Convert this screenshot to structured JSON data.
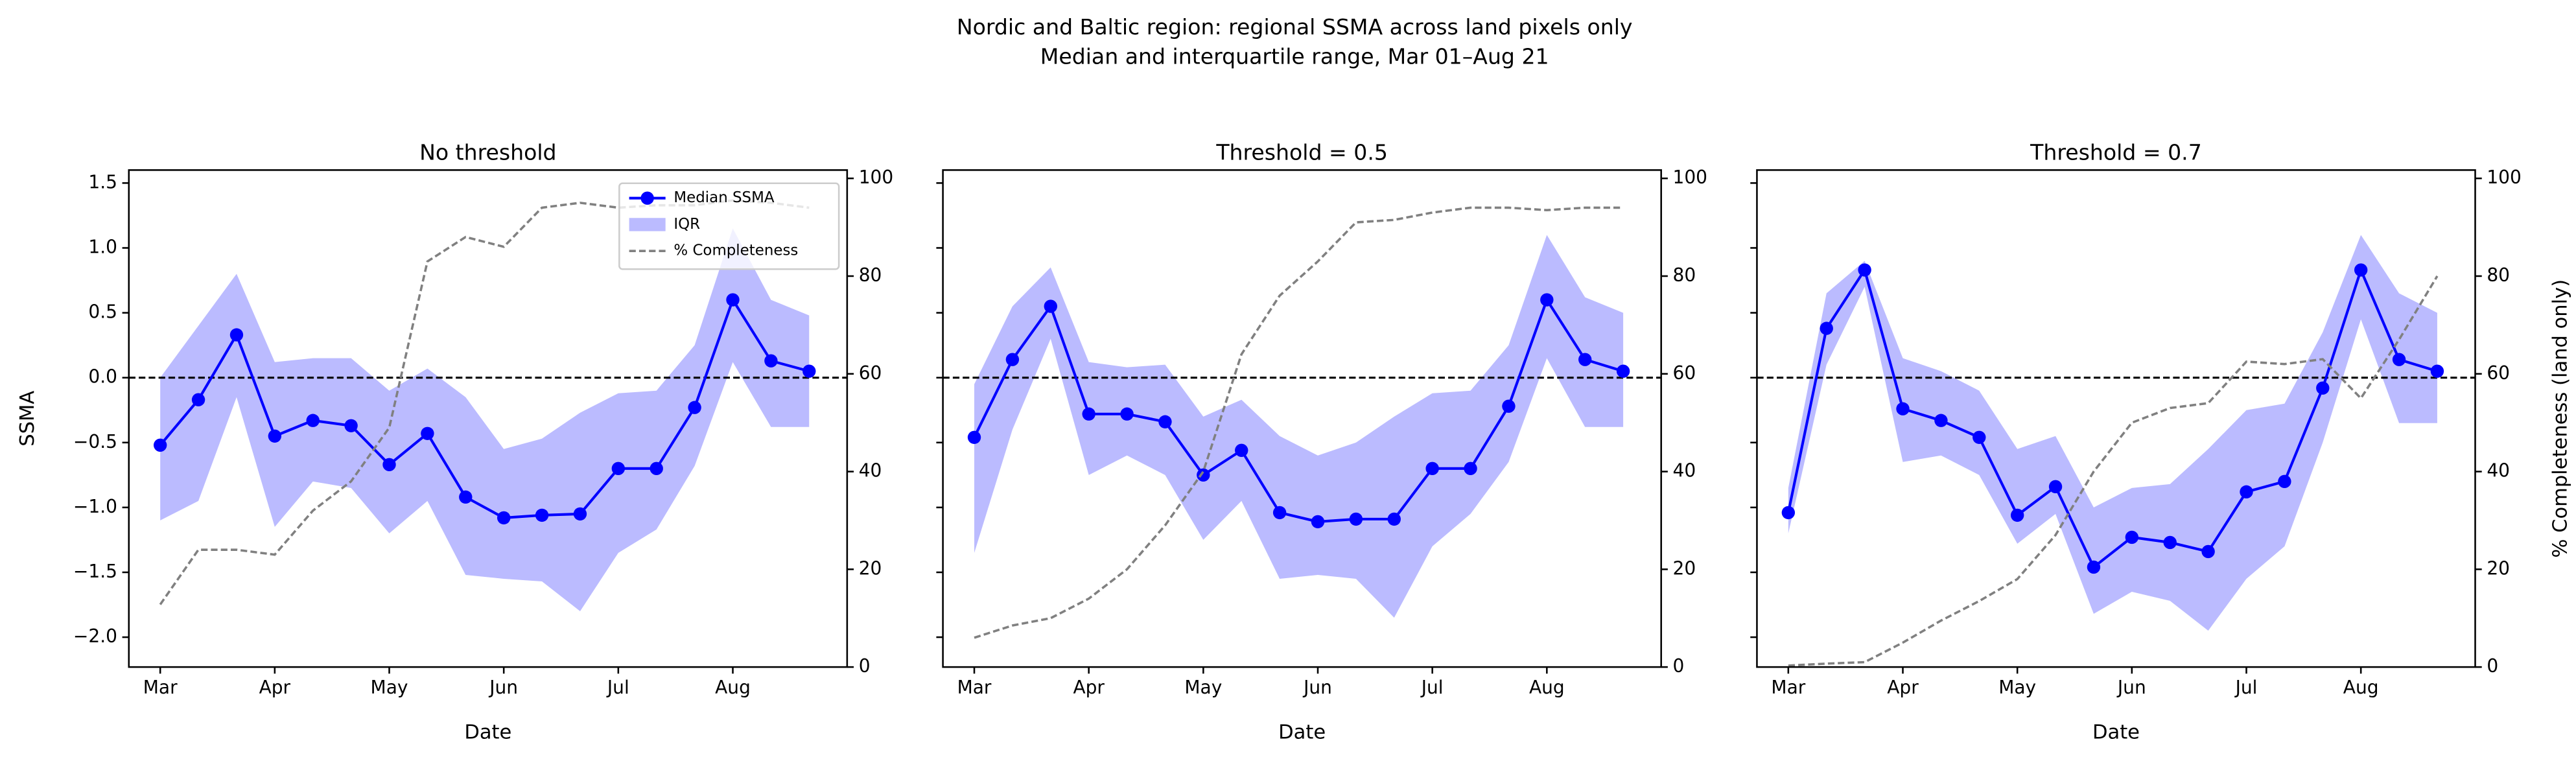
{
  "title": [
    "Nordic and Baltic region: regional SSMA across land pixels only",
    "Median and interquartile range, Mar 01–Aug 21"
  ],
  "chart_data": [
    {
      "type": "line",
      "title": "No threshold",
      "x_label": "Date",
      "y_label": "SSMA",
      "categories": [
        "Mar",
        null,
        null,
        "Apr",
        null,
        null,
        "May",
        null,
        null,
        "Jun",
        null,
        null,
        "Jul",
        null,
        null,
        "Aug",
        null,
        null
      ],
      "ylim": [
        -2.23,
        1.6
      ],
      "yticks": [
        {
          "value": -2,
          "label": "−2.0"
        },
        {
          "value": -1.5,
          "label": "−1.5"
        },
        {
          "value": -1,
          "label": "−1.0"
        },
        {
          "value": -0.5,
          "label": "−0.5"
        },
        {
          "value": 0,
          "label": "0.0"
        },
        0.5,
        {
          "value": 1,
          "label": "1.0"
        },
        1.5
      ],
      "y2lim": [
        0,
        101.7
      ],
      "y2ticks": [
        0,
        20,
        40,
        60,
        80,
        100
      ],
      "hline": 0,
      "hline_color": "#000000",
      "legend": "upper right",
      "series": [
        {
          "name": "Median SSMA",
          "color": "#0000ff",
          "values": [
            -0.52,
            -0.17,
            0.33,
            -0.45,
            -0.33,
            -0.37,
            -0.67,
            -0.43,
            -0.92,
            -1.08,
            -1.06,
            -1.05,
            -0.7,
            -0.7,
            -0.23,
            0.6,
            0.13,
            0.05
          ]
        },
        {
          "name": "IQR",
          "color": "#bbbbff",
          "lower": [
            -1.1,
            -0.95,
            -0.15,
            -1.15,
            -0.8,
            -0.85,
            -1.2,
            -0.95,
            -1.52,
            -1.55,
            -1.57,
            -1.8,
            -1.35,
            -1.17,
            -0.68,
            0.12,
            -0.38,
            -0.38
          ],
          "upper": [
            0,
            0.4,
            0.8,
            0.12,
            0.15,
            0.15,
            -0.1,
            0.07,
            -0.15,
            -0.55,
            -0.47,
            -0.27,
            -0.12,
            -0.1,
            0.25,
            1.15,
            0.6,
            0.48
          ]
        },
        {
          "name": "% Completeness",
          "color": "#808080",
          "axis": "y2",
          "values": [
            12.8,
            24,
            24,
            23,
            32,
            38,
            49,
            83,
            88,
            86,
            94,
            95,
            94,
            94.5,
            94.5,
            95.5,
            95,
            94
          ]
        }
      ]
    },
    {
      "type": "line",
      "title": "Threshold = 0.5",
      "x_label": "Date",
      "categories": [
        "Mar",
        null,
        null,
        "Apr",
        null,
        null,
        "May",
        null,
        null,
        "Jun",
        null,
        null,
        "Jul",
        null,
        null,
        "Aug",
        null,
        null
      ],
      "ylim": [
        -2.23,
        1.6
      ],
      "yticks": [
        -2,
        -1.5,
        -1,
        -0.5,
        0,
        0.5,
        1,
        1.5
      ],
      "y2lim": [
        0,
        101.7
      ],
      "y2ticks": [
        0,
        20,
        40,
        60,
        80,
        100
      ],
      "hline": 0,
      "hline_color": "#000000",
      "series": [
        {
          "name": "Median SSMA",
          "color": "#0000ff",
          "values": [
            -0.46,
            0.14,
            0.55,
            -0.28,
            -0.28,
            -0.34,
            -0.75,
            -0.56,
            -1.04,
            -1.11,
            -1.09,
            -1.09,
            -0.7,
            -0.7,
            -0.22,
            0.6,
            0.14,
            0.05
          ]
        },
        {
          "name": "IQR",
          "color": "#bbbbff",
          "lower": [
            -1.35,
            -0.4,
            0.3,
            -0.75,
            -0.6,
            -0.75,
            -1.25,
            -0.95,
            -1.55,
            -1.52,
            -1.55,
            -1.85,
            -1.3,
            -1.05,
            -0.65,
            0.15,
            -0.38,
            -0.38
          ],
          "upper": [
            -0.05,
            0.55,
            0.85,
            0.12,
            0.08,
            0.1,
            -0.3,
            -0.17,
            -0.45,
            -0.6,
            -0.5,
            -0.3,
            -0.12,
            -0.1,
            0.25,
            1.1,
            0.62,
            0.5
          ]
        },
        {
          "name": "% Completeness",
          "color": "#808080",
          "axis": "y2",
          "values": [
            6,
            8.5,
            10,
            14,
            20,
            29,
            40,
            64,
            76,
            83,
            91,
            91.5,
            93,
            94,
            94,
            93.5,
            94,
            94
          ]
        }
      ]
    },
    {
      "type": "line",
      "title": "Threshold = 0.7",
      "x_label": "Date",
      "y2_label": "% Completeness (land only)",
      "categories": [
        "Mar",
        null,
        null,
        "Apr",
        null,
        null,
        "May",
        null,
        null,
        "Jun",
        null,
        null,
        "Jul",
        null,
        null,
        "Aug",
        null,
        null
      ],
      "ylim": [
        -2.23,
        1.6
      ],
      "yticks": [
        -2,
        -1.5,
        -1,
        -0.5,
        0,
        0.5,
        1,
        1.5
      ],
      "y2lim": [
        0,
        101.7
      ],
      "y2ticks": [
        0,
        20,
        40,
        60,
        80,
        100
      ],
      "hline": 0,
      "hline_color": "#000000",
      "series": [
        {
          "name": "Median SSMA",
          "color": "#0000ff",
          "values": [
            -1.04,
            0.38,
            0.83,
            -0.24,
            -0.33,
            -0.46,
            -1.06,
            -0.84,
            -1.46,
            -1.23,
            -1.27,
            -1.34,
            -0.88,
            -0.8,
            -0.08,
            0.83,
            0.14,
            0.05
          ]
        },
        {
          "name": "IQR",
          "color": "#bbbbff",
          "lower": [
            -1.2,
            0.1,
            0.7,
            -0.65,
            -0.6,
            -0.75,
            -1.28,
            -1.05,
            -1.82,
            -1.65,
            -1.72,
            -1.95,
            -1.55,
            -1.3,
            -0.5,
            0.45,
            -0.35,
            -0.35
          ],
          "upper": [
            -0.85,
            0.65,
            0.9,
            0.15,
            0.05,
            -0.1,
            -0.55,
            -0.45,
            -1.0,
            -0.85,
            -0.82,
            -0.55,
            -0.25,
            -0.2,
            0.35,
            1.1,
            0.65,
            0.5
          ]
        },
        {
          "name": "% Completeness",
          "color": "#808080",
          "axis": "y2",
          "values": [
            0.3,
            0.7,
            1,
            5,
            9.5,
            13.5,
            18,
            27,
            40,
            50,
            53,
            54,
            62.5,
            62,
            63,
            55,
            67,
            80
          ]
        }
      ]
    }
  ]
}
